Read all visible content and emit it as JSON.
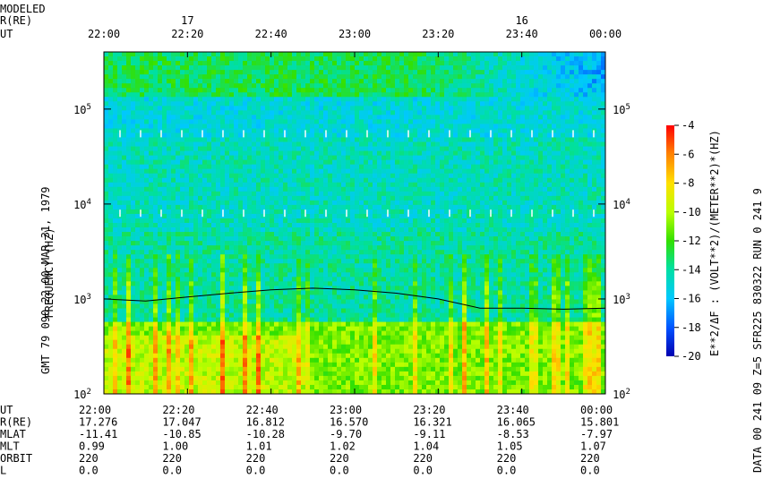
{
  "header": {
    "modeled_label": "MODELED",
    "re_label": "R(RE)",
    "ut_label": "UT",
    "top_times": [
      "22:00",
      "22:20",
      "22:40",
      "23:00",
      "23:20",
      "23:40",
      "00:00"
    ],
    "top_re": [
      {
        "ut": "22:20",
        "label": "17"
      },
      {
        "ut": "23:40",
        "label": "16"
      }
    ]
  },
  "left_caption": "GMT 79 090 22 00  MAR 31, 1979",
  "right_caption": "DATA  00 241 09 Z=5 SFR225 830322 RUN  0  241 9",
  "colorbar_caption": "E**2/ΔF : (VOLT**2)/(METER**2)*(HZ)",
  "footer_rows": [
    {
      "label": "UT",
      "values": [
        "22:00",
        "22:20",
        "22:40",
        "23:00",
        "23:20",
        "23:40",
        "00:00"
      ]
    },
    {
      "label": "R(RE)",
      "values": [
        "17.276",
        "17.047",
        "16.812",
        "16.570",
        "16.321",
        "16.065",
        "15.801"
      ]
    },
    {
      "label": "MLAT",
      "values": [
        "-11.41",
        "-10.85",
        "-10.28",
        "-9.70",
        "-9.11",
        "-8.53",
        "-7.97"
      ]
    },
    {
      "label": "MLT",
      "values": [
        "0.99",
        "1.00",
        "1.01",
        "1.02",
        "1.04",
        "1.05",
        "1.07"
      ]
    },
    {
      "label": "ORBIT",
      "values": [
        "220",
        "220",
        "220",
        "220",
        "220",
        "220",
        "220"
      ]
    },
    {
      "label": "L",
      "values": [
        "0.0",
        "0.0",
        "0.0",
        "0.0",
        "0.0",
        "0.0",
        "0.0"
      ]
    }
  ],
  "chart_data": {
    "type": "heatmap",
    "title": "",
    "xlabel": "UT",
    "ylabel": "FREQUENCY (HZ)",
    "y_scale": "log",
    "ylim": [
      100,
      400000
    ],
    "xlim": [
      "22:00",
      "00:00"
    ],
    "x_ticks": [
      "22:00",
      "22:20",
      "22:40",
      "23:00",
      "23:20",
      "23:40",
      "00:00"
    ],
    "y_ticks": [
      {
        "value": 100,
        "label": "10",
        "exp": "2"
      },
      {
        "value": 1000,
        "label": "10",
        "exp": "3"
      },
      {
        "value": 10000,
        "label": "10",
        "exp": "4"
      },
      {
        "value": 100000,
        "label": "10",
        "exp": "5"
      }
    ],
    "colorbar": {
      "range": [
        -20,
        -4
      ],
      "ticks": [
        "-4",
        "-6",
        "-8",
        "-10",
        "-12",
        "-14",
        "-16",
        "-18",
        "-20"
      ]
    },
    "electron_plasma_frequency_line": {
      "x": [
        "22:00",
        "22:10",
        "22:20",
        "22:30",
        "22:40",
        "22:50",
        "23:00",
        "23:10",
        "23:20",
        "23:30",
        "23:40",
        "23:50",
        "00:00"
      ],
      "y": [
        1000,
        950,
        1050,
        1150,
        1250,
        1300,
        1250,
        1150,
        1000,
        800,
        800,
        780,
        800
      ]
    },
    "white_marker_rows_hz": [
      8000,
      55000
    ],
    "background_log10_power": [
      {
        "f_range_hz": [
          100,
          600
        ],
        "level": -11
      },
      {
        "f_range_hz": [
          600,
          1500
        ],
        "level": -14
      },
      {
        "f_range_hz": [
          1500,
          5000
        ],
        "level": -14
      },
      {
        "f_range_hz": [
          5000,
          50000
        ],
        "level": -14.5
      },
      {
        "f_range_hz": [
          50000,
          130000
        ],
        "level": -15
      },
      {
        "f_range_hz": [
          130000,
          400000
        ],
        "level": -13
      }
    ]
  }
}
